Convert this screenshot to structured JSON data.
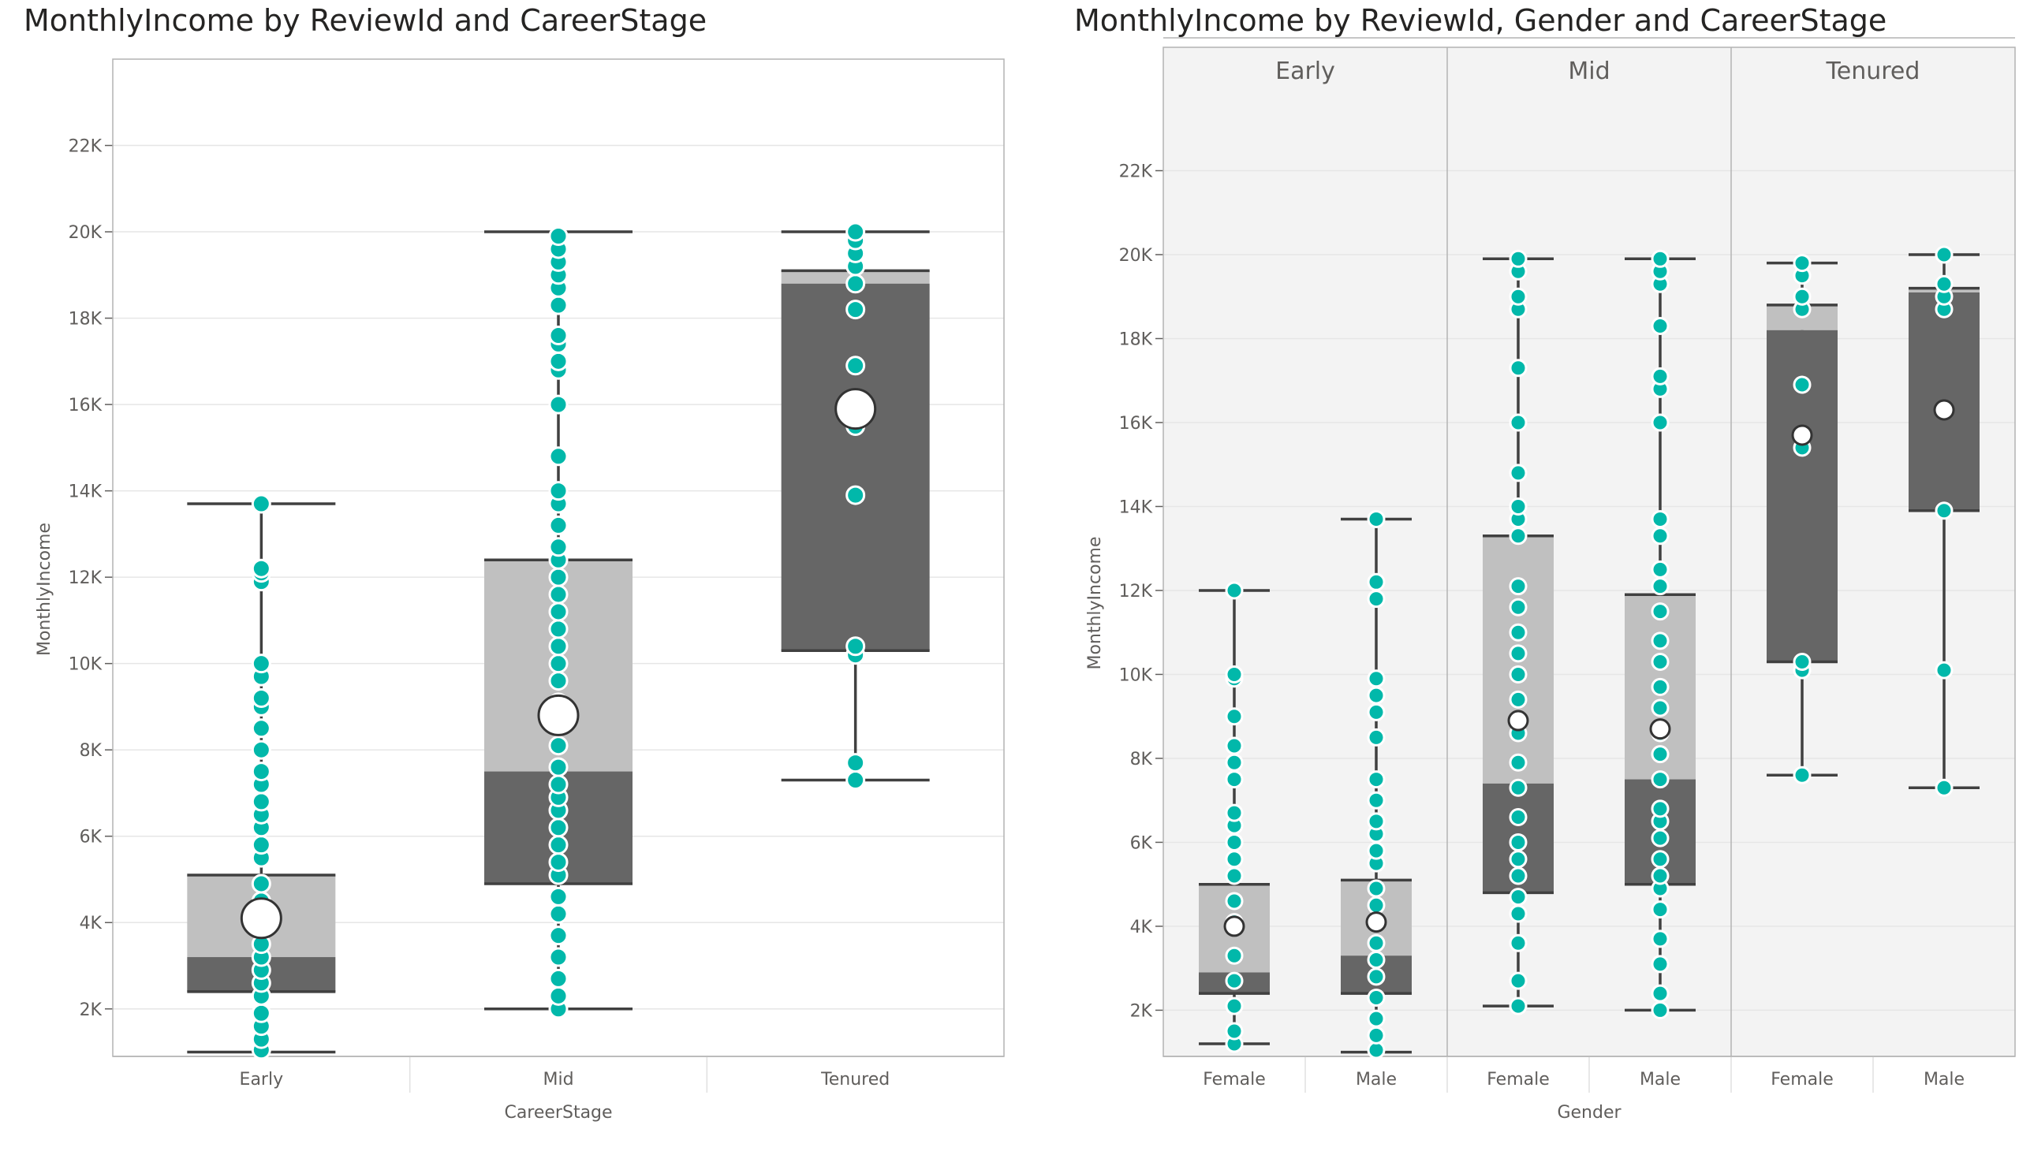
{
  "chart_data": [
    {
      "type": "box",
      "title": "MonthlyIncome by ReviewId and CareerStage",
      "xlabel": "CareerStage",
      "ylabel": "MonthlyIncome",
      "ylim": [
        900,
        24000
      ],
      "yticks": [
        2000,
        4000,
        6000,
        8000,
        10000,
        12000,
        14000,
        16000,
        18000,
        20000,
        22000
      ],
      "ytick_labels": [
        "2K",
        "4K",
        "6K",
        "8K",
        "10K",
        "12K",
        "14K",
        "16K",
        "18K",
        "20K",
        "22K"
      ],
      "categories": [
        "Early",
        "Mid",
        "Tenured"
      ],
      "boxes": [
        {
          "category": "Early",
          "min": 1000,
          "q1": 2400,
          "median": 3200,
          "q3": 5100,
          "max": 13700,
          "mean": 4100,
          "points": [
            1050,
            1300,
            1600,
            1900,
            2300,
            2600,
            2900,
            3200,
            3500,
            4000,
            4500,
            4900,
            5500,
            5800,
            6200,
            6500,
            6800,
            7200,
            7500,
            8000,
            8500,
            9000,
            9200,
            9700,
            10000,
            11900,
            12100,
            12200,
            13700
          ]
        },
        {
          "category": "Mid",
          "min": 2000,
          "q1": 4900,
          "median": 7500,
          "q3": 12400,
          "max": 20000,
          "mean": 8800,
          "points": [
            2000,
            2300,
            2700,
            3200,
            3700,
            4200,
            4600,
            5100,
            5400,
            5800,
            6200,
            6600,
            6900,
            7200,
            7600,
            8100,
            8600,
            9100,
            9600,
            10000,
            10400,
            10800,
            11200,
            11600,
            12000,
            12400,
            12700,
            13200,
            13700,
            14000,
            14800,
            16000,
            16800,
            17000,
            17400,
            17600,
            18300,
            18700,
            19000,
            19300,
            19600,
            19900
          ]
        },
        {
          "category": "Tenured",
          "min": 7300,
          "q1": 10300,
          "median": 18800,
          "q3": 19100,
          "max": 20000,
          "mean": 15900,
          "points": [
            7300,
            7700,
            10200,
            10400,
            13900,
            15500,
            15700,
            16900,
            18200,
            18800,
            19200,
            19500,
            19800,
            20000
          ]
        }
      ]
    },
    {
      "type": "box",
      "title": "MonthlyIncome by ReviewId, Gender and CareerStage",
      "xlabel": "Gender",
      "ylabel": "MonthlyIncome",
      "ylim": [
        900,
        24000
      ],
      "yticks": [
        2000,
        4000,
        6000,
        8000,
        10000,
        12000,
        14000,
        16000,
        18000,
        20000,
        22000
      ],
      "ytick_labels": [
        "2K",
        "4K",
        "6K",
        "8K",
        "10K",
        "12K",
        "14K",
        "16K",
        "18K",
        "20K",
        "22K"
      ],
      "panels": [
        "Early",
        "Mid",
        "Tenured"
      ],
      "categories": [
        "Female",
        "Male"
      ],
      "boxes": [
        {
          "panel": "Early",
          "category": "Female",
          "min": 1200,
          "q1": 2400,
          "median": 2900,
          "q3": 5000,
          "max": 12000,
          "mean": 4000,
          "points": [
            1200,
            1500,
            2100,
            2700,
            3300,
            4100,
            4600,
            5200,
            5600,
            6000,
            6400,
            6700,
            7500,
            7900,
            8300,
            9000,
            9900,
            10000,
            12000
          ]
        },
        {
          "panel": "Early",
          "category": "Male",
          "min": 1000,
          "q1": 2400,
          "median": 3300,
          "q3": 5100,
          "max": 13700,
          "mean": 4100,
          "points": [
            1050,
            1400,
            1800,
            2300,
            2800,
            3200,
            3600,
            4100,
            4500,
            4900,
            5500,
            5800,
            6200,
            6500,
            7000,
            7500,
            8500,
            9100,
            9500,
            9900,
            11800,
            12200,
            13700
          ]
        },
        {
          "panel": "Mid",
          "category": "Female",
          "min": 2100,
          "q1": 4800,
          "median": 7400,
          "q3": 13300,
          "max": 19900,
          "mean": 8900,
          "points": [
            2100,
            2700,
            3600,
            4300,
            4700,
            5200,
            5600,
            6000,
            6600,
            7300,
            7900,
            8600,
            9400,
            10000,
            10500,
            11000,
            11600,
            12100,
            13300,
            13700,
            14000,
            14800,
            16000,
            17300,
            18700,
            19000,
            19600,
            19900
          ]
        },
        {
          "panel": "Mid",
          "category": "Male",
          "min": 2000,
          "q1": 5000,
          "median": 7500,
          "q3": 11900,
          "max": 19900,
          "mean": 8700,
          "points": [
            2000,
            2400,
            3100,
            3700,
            4400,
            4900,
            5200,
            5600,
            6100,
            6500,
            6800,
            7500,
            8100,
            8600,
            9200,
            9700,
            10300,
            10800,
            11500,
            12100,
            12500,
            13300,
            13700,
            16000,
            16800,
            17100,
            18300,
            19300,
            19600,
            19900
          ]
        },
        {
          "panel": "Tenured",
          "category": "Female",
          "min": 7600,
          "q1": 10300,
          "median": 18200,
          "q3": 18800,
          "max": 19800,
          "mean": 15700,
          "points": [
            7600,
            10100,
            10300,
            15400,
            15700,
            16900,
            18700,
            19000,
            19500,
            19800
          ]
        },
        {
          "panel": "Tenured",
          "category": "Male",
          "min": 7300,
          "q1": 13900,
          "median": 19100,
          "q3": 19200,
          "max": 20000,
          "mean": 16300,
          "points": [
            7300,
            10100,
            13900,
            18700,
            19000,
            19300,
            20000
          ]
        }
      ]
    }
  ],
  "colors": {
    "upper_box": "#c0c0c0",
    "lower_box": "#666666",
    "point": "#01b8aa",
    "whisker": "#404040",
    "panel_bg": "#f3f3f3"
  }
}
